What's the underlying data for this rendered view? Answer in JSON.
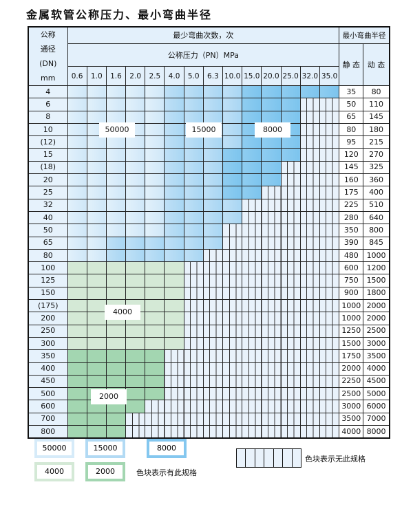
{
  "title": "金属软管公称压力、最小弯曲半径",
  "header": {
    "dn_label": [
      "公称",
      "通径",
      "(DN)",
      "mm"
    ],
    "cycles_label": "最少弯曲次数，次",
    "pn_label": "公称压力（PN）MPa",
    "radius_label": "最小弯曲半径",
    "static_label": "静 态",
    "dynamic_label": "动 态",
    "pressures": [
      "0.6",
      "1.0",
      "1.6",
      "2.0",
      "2.5",
      "4.0",
      "5.0",
      "6.3",
      "10.0",
      "15.0",
      "20.0",
      "25.0",
      "32.0",
      "35.0"
    ]
  },
  "colors": {
    "50000": "#d6ebf9",
    "15000": "#b2daf4",
    "8000": "#84c7ef",
    "4000": "#d4e9d6",
    "2000": "#a3d6b1",
    "none": "#e9f2fb"
  },
  "zone_labels": {
    "z50000": "50000",
    "z15000": "15000",
    "z8000": "8000",
    "z4000": "4000",
    "z2000": "2000"
  },
  "rows": [
    {
      "dn": "4",
      "static": "35",
      "dynamic": "80",
      "cycles": [
        50000,
        50000,
        50000,
        50000,
        50000,
        15000,
        15000,
        15000,
        15000,
        8000,
        8000,
        8000,
        8000,
        8000
      ]
    },
    {
      "dn": "6",
      "static": "50",
      "dynamic": "110",
      "cycles": [
        50000,
        50000,
        50000,
        50000,
        50000,
        15000,
        15000,
        15000,
        15000,
        8000,
        8000,
        8000,
        null,
        null
      ]
    },
    {
      "dn": "8",
      "static": "65",
      "dynamic": "145",
      "cycles": [
        50000,
        50000,
        50000,
        50000,
        50000,
        15000,
        15000,
        15000,
        15000,
        8000,
        8000,
        8000,
        null,
        null
      ]
    },
    {
      "dn": "10",
      "static": "80",
      "dynamic": "180",
      "cycles": [
        50000,
        50000,
        50000,
        50000,
        50000,
        15000,
        15000,
        15000,
        15000,
        8000,
        8000,
        8000,
        null,
        null
      ]
    },
    {
      "dn": "(12)",
      "static": "95",
      "dynamic": "215",
      "cycles": [
        50000,
        50000,
        50000,
        50000,
        50000,
        15000,
        15000,
        15000,
        15000,
        8000,
        8000,
        8000,
        null,
        null
      ]
    },
    {
      "dn": "15",
      "static": "120",
      "dynamic": "270",
      "cycles": [
        50000,
        50000,
        50000,
        50000,
        50000,
        15000,
        15000,
        15000,
        8000,
        8000,
        8000,
        8000,
        null,
        null
      ]
    },
    {
      "dn": "(18)",
      "static": "145",
      "dynamic": "325",
      "cycles": [
        50000,
        50000,
        50000,
        50000,
        50000,
        15000,
        15000,
        15000,
        8000,
        8000,
        8000,
        null,
        null,
        null
      ]
    },
    {
      "dn": "20",
      "static": "160",
      "dynamic": "360",
      "cycles": [
        50000,
        50000,
        50000,
        50000,
        50000,
        15000,
        15000,
        15000,
        8000,
        8000,
        8000,
        null,
        null,
        null
      ]
    },
    {
      "dn": "25",
      "static": "175",
      "dynamic": "400",
      "cycles": [
        50000,
        50000,
        50000,
        50000,
        50000,
        15000,
        15000,
        15000,
        8000,
        8000,
        null,
        null,
        null,
        null
      ]
    },
    {
      "dn": "32",
      "static": "225",
      "dynamic": "510",
      "cycles": [
        50000,
        50000,
        50000,
        50000,
        50000,
        15000,
        15000,
        15000,
        15000,
        null,
        null,
        null,
        null,
        null
      ]
    },
    {
      "dn": "40",
      "static": "280",
      "dynamic": "640",
      "cycles": [
        50000,
        50000,
        50000,
        50000,
        50000,
        15000,
        15000,
        15000,
        15000,
        null,
        null,
        null,
        null,
        null
      ]
    },
    {
      "dn": "50",
      "static": "350",
      "dynamic": "800",
      "cycles": [
        50000,
        50000,
        50000,
        50000,
        50000,
        15000,
        15000,
        15000,
        null,
        null,
        null,
        null,
        null,
        null
      ]
    },
    {
      "dn": "65",
      "static": "390",
      "dynamic": "845",
      "cycles": [
        50000,
        50000,
        15000,
        15000,
        15000,
        15000,
        15000,
        15000,
        null,
        null,
        null,
        null,
        null,
        null
      ]
    },
    {
      "dn": "80",
      "static": "480",
      "dynamic": "1000",
      "cycles": [
        50000,
        50000,
        15000,
        15000,
        15000,
        15000,
        15000,
        null,
        null,
        null,
        null,
        null,
        null,
        null
      ]
    },
    {
      "dn": "100",
      "static": "600",
      "dynamic": "1200",
      "cycles": [
        4000,
        4000,
        4000,
        4000,
        4000,
        4000,
        null,
        null,
        null,
        null,
        null,
        null,
        null,
        null
      ]
    },
    {
      "dn": "125",
      "static": "750",
      "dynamic": "1500",
      "cycles": [
        4000,
        4000,
        4000,
        4000,
        4000,
        4000,
        null,
        null,
        null,
        null,
        null,
        null,
        null,
        null
      ]
    },
    {
      "dn": "150",
      "static": "900",
      "dynamic": "1800",
      "cycles": [
        4000,
        4000,
        4000,
        4000,
        4000,
        4000,
        null,
        null,
        null,
        null,
        null,
        null,
        null,
        null
      ]
    },
    {
      "dn": "(175)",
      "static": "1000",
      "dynamic": "2000",
      "cycles": [
        4000,
        4000,
        4000,
        4000,
        4000,
        4000,
        null,
        null,
        null,
        null,
        null,
        null,
        null,
        null
      ]
    },
    {
      "dn": "200",
      "static": "1000",
      "dynamic": "2000",
      "cycles": [
        4000,
        4000,
        4000,
        4000,
        4000,
        4000,
        null,
        null,
        null,
        null,
        null,
        null,
        null,
        null
      ]
    },
    {
      "dn": "250",
      "static": "1250",
      "dynamic": "2500",
      "cycles": [
        4000,
        4000,
        4000,
        4000,
        4000,
        4000,
        null,
        null,
        null,
        null,
        null,
        null,
        null,
        null
      ]
    },
    {
      "dn": "300",
      "static": "1500",
      "dynamic": "3000",
      "cycles": [
        4000,
        4000,
        4000,
        4000,
        4000,
        4000,
        null,
        null,
        null,
        null,
        null,
        null,
        null,
        null
      ]
    },
    {
      "dn": "350",
      "static": "1750",
      "dynamic": "3500",
      "cycles": [
        2000,
        2000,
        2000,
        2000,
        2000,
        null,
        null,
        null,
        null,
        null,
        null,
        null,
        null,
        null
      ]
    },
    {
      "dn": "400",
      "static": "2000",
      "dynamic": "4000",
      "cycles": [
        2000,
        2000,
        2000,
        2000,
        2000,
        null,
        null,
        null,
        null,
        null,
        null,
        null,
        null,
        null
      ]
    },
    {
      "dn": "450",
      "static": "2250",
      "dynamic": "4500",
      "cycles": [
        2000,
        2000,
        2000,
        2000,
        2000,
        null,
        null,
        null,
        null,
        null,
        null,
        null,
        null,
        null
      ]
    },
    {
      "dn": "500",
      "static": "2500",
      "dynamic": "5000",
      "cycles": [
        2000,
        2000,
        2000,
        2000,
        2000,
        null,
        null,
        null,
        null,
        null,
        null,
        null,
        null,
        null
      ]
    },
    {
      "dn": "600",
      "static": "3000",
      "dynamic": "6000",
      "cycles": [
        2000,
        2000,
        2000,
        2000,
        null,
        null,
        null,
        null,
        null,
        null,
        null,
        null,
        null,
        null
      ]
    },
    {
      "dn": "700",
      "static": "3500",
      "dynamic": "7000",
      "cycles": [
        2000,
        2000,
        2000,
        null,
        null,
        null,
        null,
        null,
        null,
        null,
        null,
        null,
        null,
        null
      ]
    },
    {
      "dn": "800",
      "static": "4000",
      "dynamic": "8000",
      "cycles": [
        2000,
        2000,
        2000,
        null,
        null,
        null,
        null,
        null,
        null,
        null,
        null,
        null,
        null,
        null
      ]
    }
  ],
  "legend": {
    "items": [
      "50000",
      "15000",
      "8000",
      "4000",
      "2000"
    ],
    "has_spec_note": "色块表示有此规格",
    "no_spec_note": "色块表示无此规格"
  }
}
